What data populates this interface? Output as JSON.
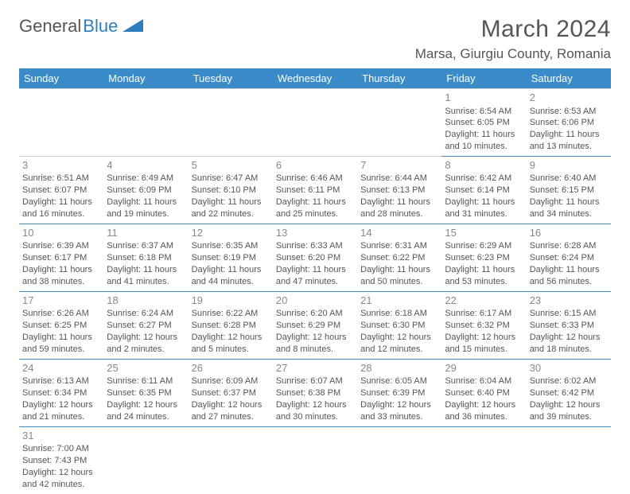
{
  "logo": {
    "text1": "General",
    "text2": "Blue",
    "color1": "#555555",
    "color2": "#2f7fbf"
  },
  "title": "March 2024",
  "location": "Marsa, Giurgiu County, Romania",
  "header_bg": "#3b8bc9",
  "header_fg": "#ffffff",
  "border_color": "#3b8bc9",
  "text_color": "#555555",
  "daynum_color": "#888888",
  "days_of_week": [
    "Sunday",
    "Monday",
    "Tuesday",
    "Wednesday",
    "Thursday",
    "Friday",
    "Saturday"
  ],
  "weeks": [
    [
      null,
      null,
      null,
      null,
      null,
      {
        "n": "1",
        "sr": "6:54 AM",
        "ss": "6:05 PM",
        "dl": "11 hours and 10 minutes."
      },
      {
        "n": "2",
        "sr": "6:53 AM",
        "ss": "6:06 PM",
        "dl": "11 hours and 13 minutes."
      }
    ],
    [
      {
        "n": "3",
        "sr": "6:51 AM",
        "ss": "6:07 PM",
        "dl": "11 hours and 16 minutes."
      },
      {
        "n": "4",
        "sr": "6:49 AM",
        "ss": "6:09 PM",
        "dl": "11 hours and 19 minutes."
      },
      {
        "n": "5",
        "sr": "6:47 AM",
        "ss": "6:10 PM",
        "dl": "11 hours and 22 minutes."
      },
      {
        "n": "6",
        "sr": "6:46 AM",
        "ss": "6:11 PM",
        "dl": "11 hours and 25 minutes."
      },
      {
        "n": "7",
        "sr": "6:44 AM",
        "ss": "6:13 PM",
        "dl": "11 hours and 28 minutes."
      },
      {
        "n": "8",
        "sr": "6:42 AM",
        "ss": "6:14 PM",
        "dl": "11 hours and 31 minutes."
      },
      {
        "n": "9",
        "sr": "6:40 AM",
        "ss": "6:15 PM",
        "dl": "11 hours and 34 minutes."
      }
    ],
    [
      {
        "n": "10",
        "sr": "6:39 AM",
        "ss": "6:17 PM",
        "dl": "11 hours and 38 minutes."
      },
      {
        "n": "11",
        "sr": "6:37 AM",
        "ss": "6:18 PM",
        "dl": "11 hours and 41 minutes."
      },
      {
        "n": "12",
        "sr": "6:35 AM",
        "ss": "6:19 PM",
        "dl": "11 hours and 44 minutes."
      },
      {
        "n": "13",
        "sr": "6:33 AM",
        "ss": "6:20 PM",
        "dl": "11 hours and 47 minutes."
      },
      {
        "n": "14",
        "sr": "6:31 AM",
        "ss": "6:22 PM",
        "dl": "11 hours and 50 minutes."
      },
      {
        "n": "15",
        "sr": "6:29 AM",
        "ss": "6:23 PM",
        "dl": "11 hours and 53 minutes."
      },
      {
        "n": "16",
        "sr": "6:28 AM",
        "ss": "6:24 PM",
        "dl": "11 hours and 56 minutes."
      }
    ],
    [
      {
        "n": "17",
        "sr": "6:26 AM",
        "ss": "6:25 PM",
        "dl": "11 hours and 59 minutes."
      },
      {
        "n": "18",
        "sr": "6:24 AM",
        "ss": "6:27 PM",
        "dl": "12 hours and 2 minutes."
      },
      {
        "n": "19",
        "sr": "6:22 AM",
        "ss": "6:28 PM",
        "dl": "12 hours and 5 minutes."
      },
      {
        "n": "20",
        "sr": "6:20 AM",
        "ss": "6:29 PM",
        "dl": "12 hours and 8 minutes."
      },
      {
        "n": "21",
        "sr": "6:18 AM",
        "ss": "6:30 PM",
        "dl": "12 hours and 12 minutes."
      },
      {
        "n": "22",
        "sr": "6:17 AM",
        "ss": "6:32 PM",
        "dl": "12 hours and 15 minutes."
      },
      {
        "n": "23",
        "sr": "6:15 AM",
        "ss": "6:33 PM",
        "dl": "12 hours and 18 minutes."
      }
    ],
    [
      {
        "n": "24",
        "sr": "6:13 AM",
        "ss": "6:34 PM",
        "dl": "12 hours and 21 minutes."
      },
      {
        "n": "25",
        "sr": "6:11 AM",
        "ss": "6:35 PM",
        "dl": "12 hours and 24 minutes."
      },
      {
        "n": "26",
        "sr": "6:09 AM",
        "ss": "6:37 PM",
        "dl": "12 hours and 27 minutes."
      },
      {
        "n": "27",
        "sr": "6:07 AM",
        "ss": "6:38 PM",
        "dl": "12 hours and 30 minutes."
      },
      {
        "n": "28",
        "sr": "6:05 AM",
        "ss": "6:39 PM",
        "dl": "12 hours and 33 minutes."
      },
      {
        "n": "29",
        "sr": "6:04 AM",
        "ss": "6:40 PM",
        "dl": "12 hours and 36 minutes."
      },
      {
        "n": "30",
        "sr": "6:02 AM",
        "ss": "6:42 PM",
        "dl": "12 hours and 39 minutes."
      }
    ],
    [
      {
        "n": "31",
        "sr": "7:00 AM",
        "ss": "7:43 PM",
        "dl": "12 hours and 42 minutes."
      },
      null,
      null,
      null,
      null,
      null,
      null
    ]
  ],
  "labels": {
    "sunrise": "Sunrise:",
    "sunset": "Sunset:",
    "daylight": "Daylight:"
  }
}
